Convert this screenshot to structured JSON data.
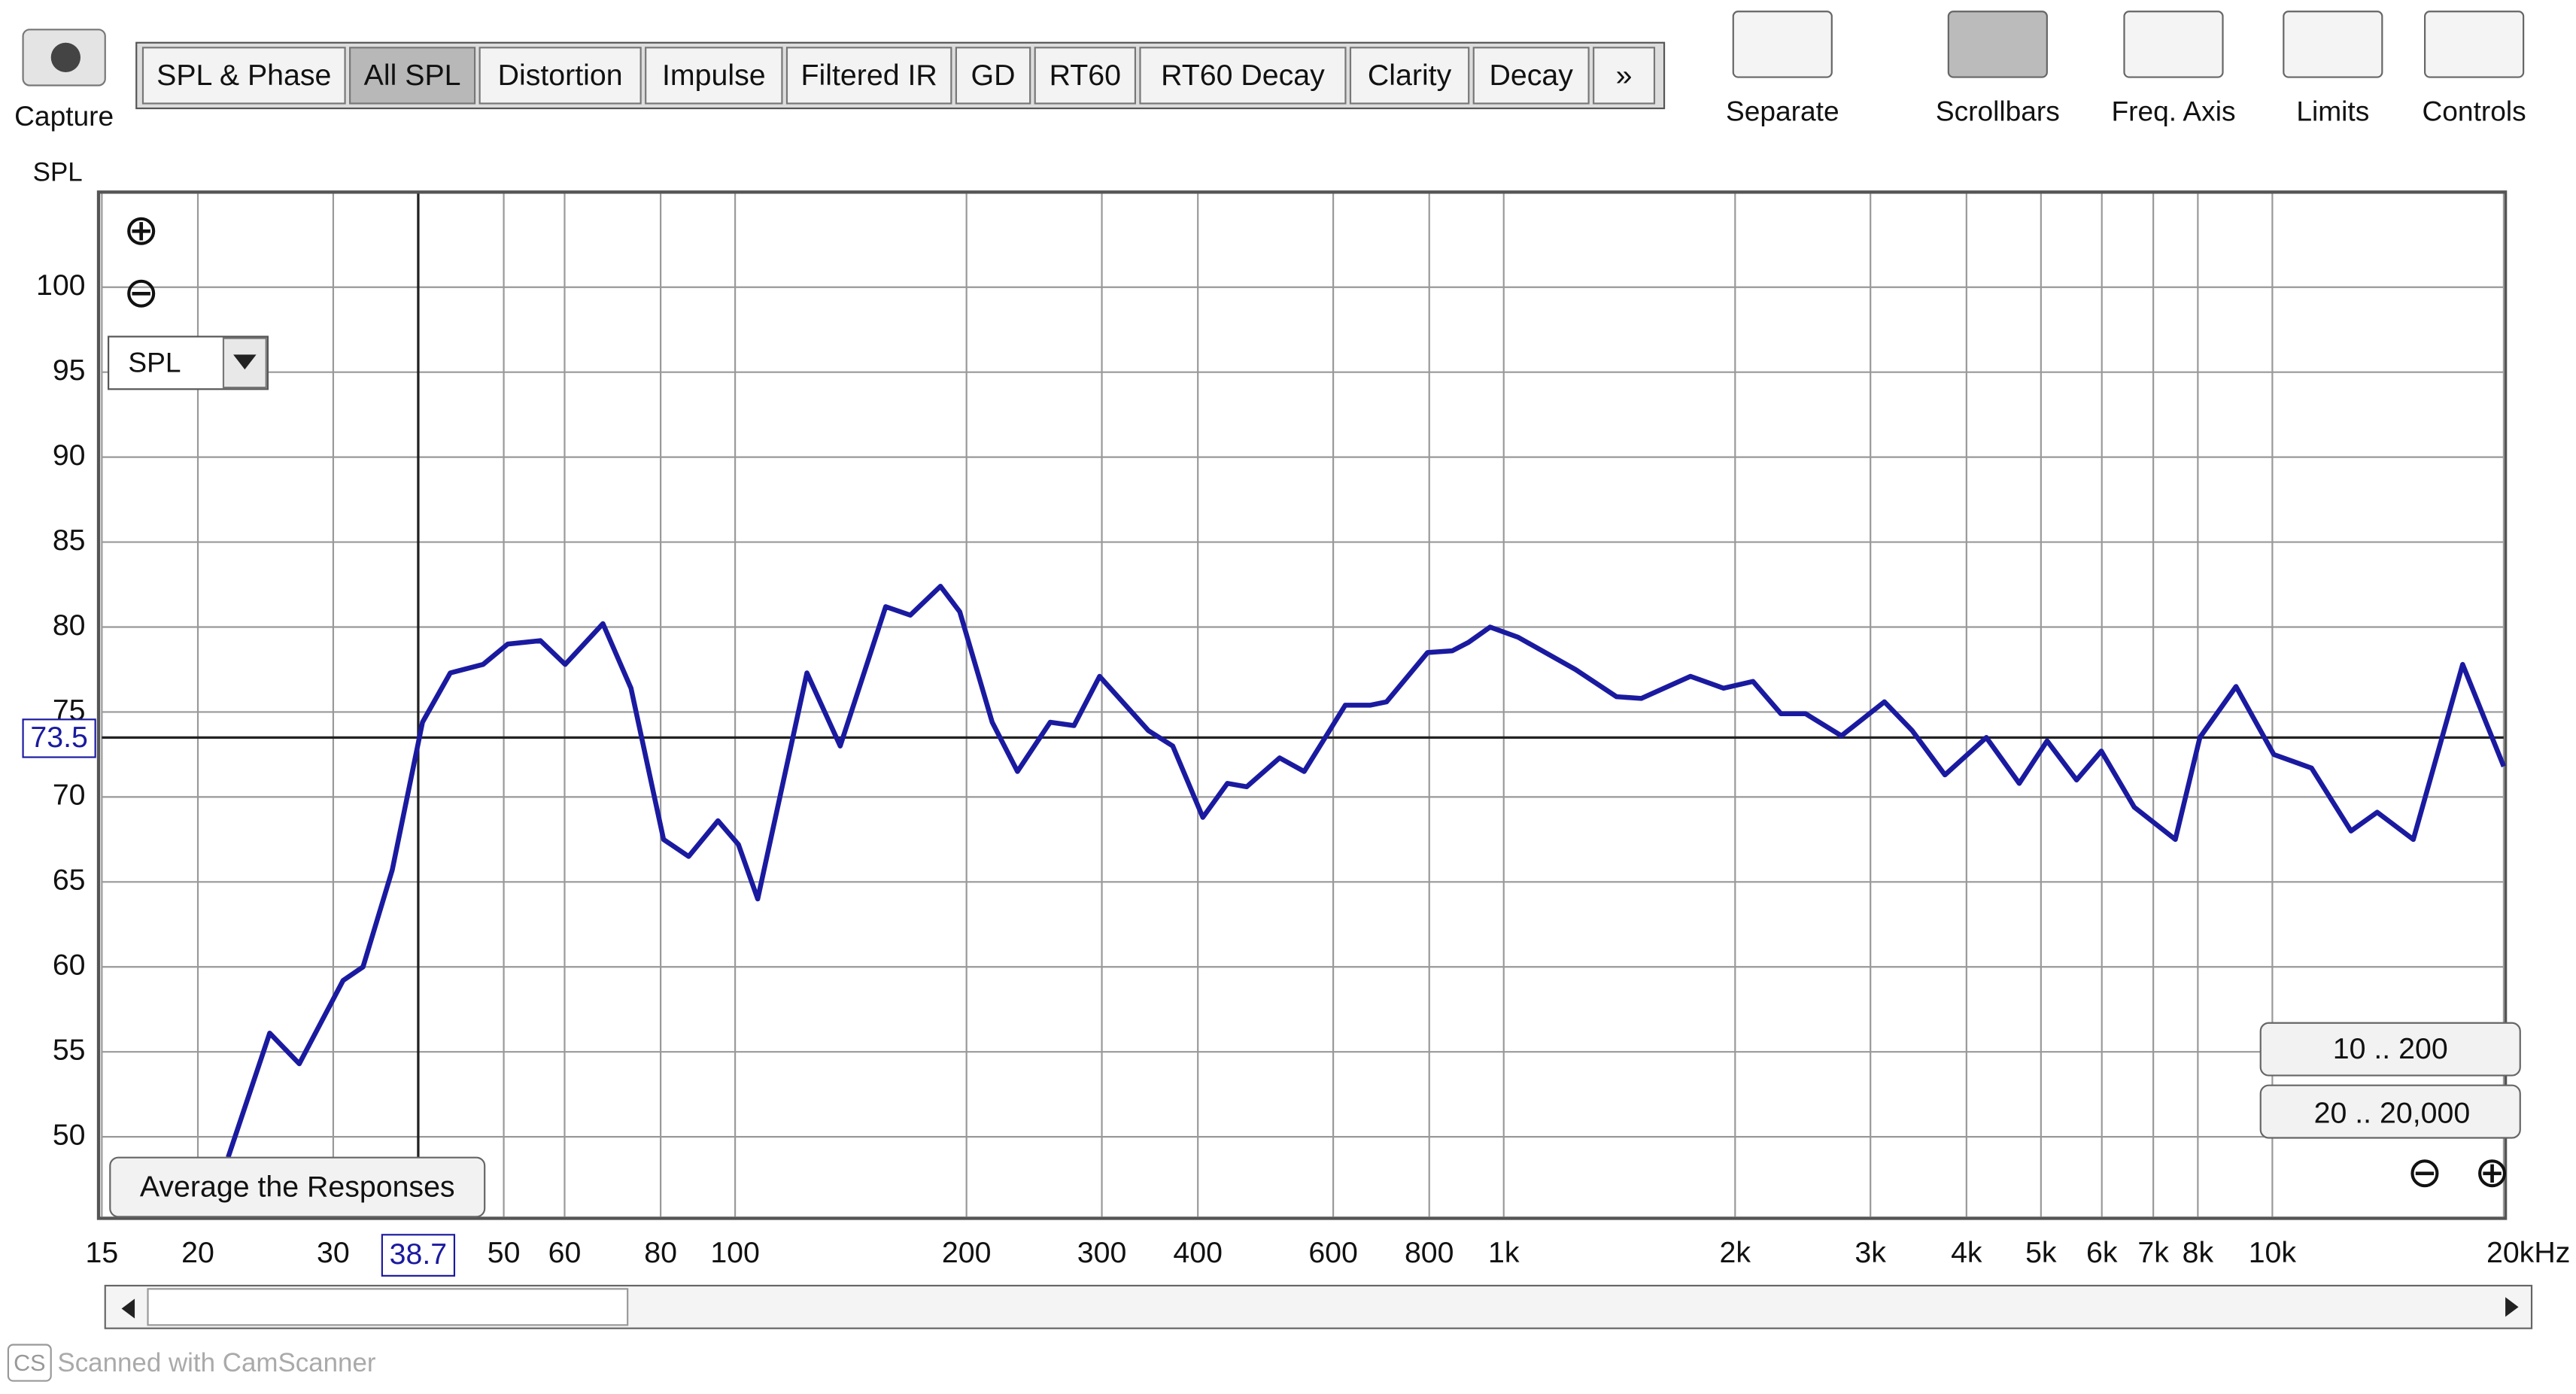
{
  "toolbar": {
    "capture": "Capture",
    "tabs": [
      "SPL & Phase",
      "All SPL",
      "Distortion",
      "Impulse",
      "Filtered IR",
      "GD",
      "RT60",
      "RT60 Decay",
      "Clarity",
      "Decay",
      "»"
    ],
    "selected_tab": "All SPL",
    "tools": [
      "Separate",
      "Scrollbars",
      "Freq. Axis",
      "Limits",
      "Controls"
    ]
  },
  "controls": {
    "dropdown": "SPL",
    "average_button": "Average the Responses",
    "range_buttons": [
      "10 .. 200",
      "20 .. 20,000"
    ]
  },
  "footer": {
    "logo": "CS",
    "text": "Scanned with CamScanner"
  },
  "chart_data": {
    "type": "line",
    "y_label": "SPL",
    "x_scale": "log",
    "grid": true,
    "xlim": [
      15,
      20000
    ],
    "ylim": [
      45.3,
      105.5
    ],
    "xticks": [
      15,
      20,
      30,
      50,
      60,
      80,
      100,
      200,
      300,
      400,
      600,
      800,
      {
        "value": 1000,
        "label": "1k"
      },
      {
        "value": 2000,
        "label": "2k"
      },
      {
        "value": 3000,
        "label": "3k"
      },
      {
        "value": 4000,
        "label": "4k"
      },
      {
        "value": 5000,
        "label": "5k"
      },
      {
        "value": 6000,
        "label": "6k"
      },
      {
        "value": 7000,
        "label": "7k"
      },
      {
        "value": 8000,
        "label": "8k"
      },
      {
        "value": 10000,
        "label": "10k"
      },
      {
        "value": 20000,
        "label": "20kHz"
      }
    ],
    "yticks": [
      50,
      55,
      60,
      65,
      70,
      75,
      80,
      85,
      90,
      95,
      100
    ],
    "cursor": {
      "x": 38.7,
      "y": 73.5
    },
    "x": [
      21.9,
      24.8,
      27.1,
      30.9,
      32.8,
      35.8,
      39.2,
      42.6,
      47,
      50.6,
      55.8,
      60.1,
      67.3,
      73.2,
      80.7,
      87,
      95,
      101,
      107,
      124,
      137,
      157,
      169,
      185,
      196,
      216,
      233,
      257,
      276,
      298,
      345,
      371,
      406,
      437,
      463,
      511,
      550,
      622,
      670,
      704,
      796,
      857,
      900,
      960,
      1044,
      1240,
      1402,
      1510,
      1750,
      1932,
      2110,
      2294,
      2470,
      2750,
      3128,
      3400,
      3750,
      4245,
      4685,
      5093,
      5563,
      5991,
      6612,
      7478,
      8049,
      8969,
      10044,
      11247,
      12657,
      13692,
      15255,
      17685,
      20000
    ],
    "series": [
      {
        "name": "SPL",
        "color": "#1a1aa0",
        "values": [
          48.8,
          56.1,
          54.3,
          59.2,
          60,
          65.7,
          74.4,
          77.3,
          77.8,
          79,
          79.2,
          77.8,
          80.2,
          76.4,
          67.5,
          66.5,
          68.6,
          67.2,
          64,
          77.3,
          73,
          81.2,
          80.7,
          82.4,
          80.9,
          74.4,
          71.5,
          74.4,
          74.2,
          77.1,
          73.9,
          73,
          68.8,
          70.8,
          70.6,
          72.3,
          71.5,
          75.4,
          75.4,
          75.6,
          78.5,
          78.6,
          79.1,
          80,
          79.4,
          77.5,
          75.9,
          75.8,
          77.1,
          76.4,
          76.8,
          74.9,
          74.9,
          73.6,
          75.6,
          73.9,
          71.3,
          73.5,
          70.8,
          73.3,
          71,
          72.7,
          69.4,
          67.5,
          73.5,
          76.5,
          72.5,
          71.7,
          68,
          69.1,
          67.5,
          77.8,
          71.8
        ]
      }
    ]
  }
}
